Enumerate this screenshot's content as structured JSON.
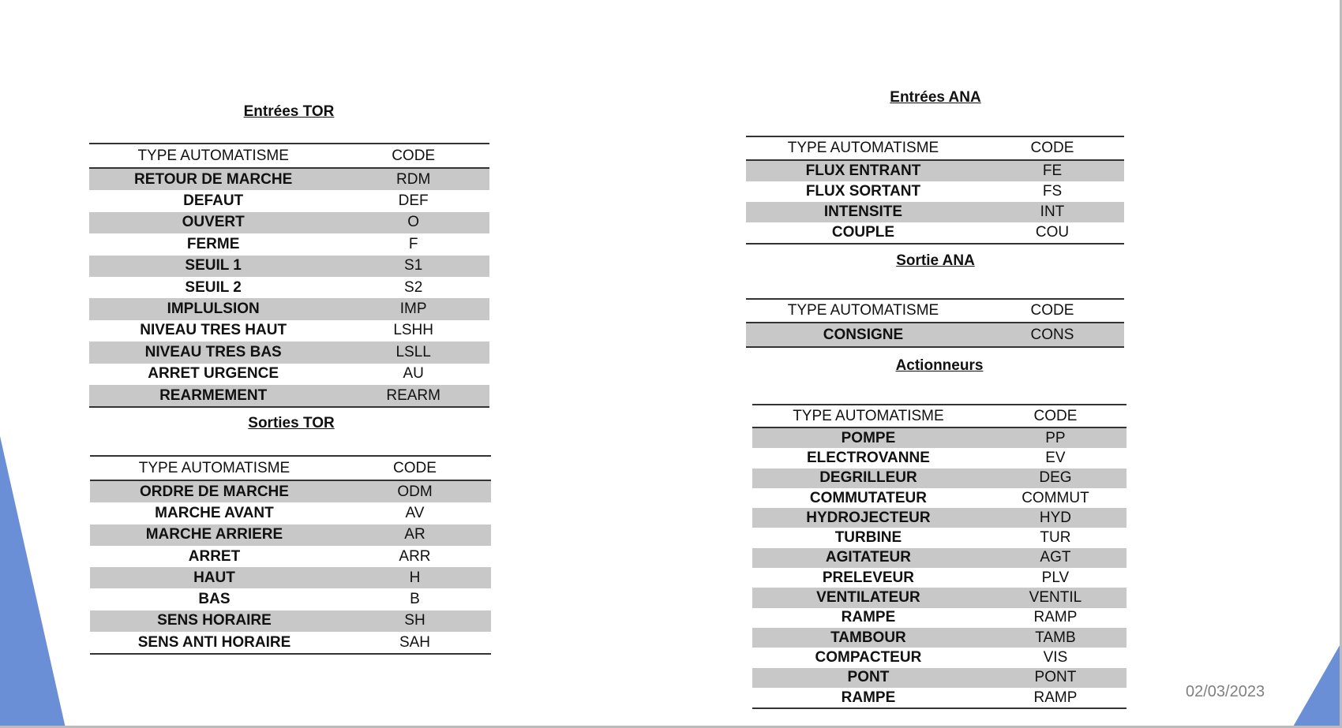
{
  "date": "02/03/2023",
  "colors": {
    "accent": "#6a8fd6",
    "row_shade": "#c8c8c8"
  },
  "tables": [
    {
      "id": "entrees-tor",
      "title": "Entrées TOR",
      "header": [
        "TYPE AUTOMATISME",
        "CODE"
      ],
      "rows": [
        [
          "RETOUR DE MARCHE",
          "RDM"
        ],
        [
          "DEFAUT",
          "DEF"
        ],
        [
          "OUVERT",
          "O"
        ],
        [
          "FERME",
          "F"
        ],
        [
          "SEUIL 1",
          "S1"
        ],
        [
          "SEUIL 2",
          "S2"
        ],
        [
          "IMPLULSION",
          "IMP"
        ],
        [
          "NIVEAU TRES HAUT",
          "LSHH"
        ],
        [
          "NIVEAU TRES BAS",
          "LSLL"
        ],
        [
          "ARRET URGENCE",
          "AU"
        ],
        [
          "REARMEMENT",
          "REARM"
        ]
      ]
    },
    {
      "id": "sorties-tor",
      "title": "Sorties TOR",
      "header": [
        "TYPE AUTOMATISME",
        "CODE"
      ],
      "rows": [
        [
          "ORDRE DE MARCHE",
          "ODM"
        ],
        [
          "MARCHE AVANT",
          "AV"
        ],
        [
          "MARCHE ARRIERE",
          "AR"
        ],
        [
          "ARRET",
          "ARR"
        ],
        [
          "HAUT",
          "H"
        ],
        [
          "BAS",
          "B"
        ],
        [
          "SENS HORAIRE",
          "SH"
        ],
        [
          "SENS ANTI HORAIRE",
          "SAH"
        ]
      ]
    },
    {
      "id": "entrees-ana",
      "title": "Entrées ANA",
      "header": [
        "TYPE AUTOMATISME",
        "CODE"
      ],
      "rows": [
        [
          "FLUX ENTRANT",
          "FE"
        ],
        [
          "FLUX SORTANT",
          "FS"
        ],
        [
          "INTENSITE",
          "INT"
        ],
        [
          "COUPLE",
          "COU"
        ]
      ]
    },
    {
      "id": "sortie-ana",
      "title": "Sortie ANA",
      "header": [
        "TYPE AUTOMATISME",
        "CODE"
      ],
      "rows": [
        [
          "CONSIGNE",
          "CONS"
        ]
      ]
    },
    {
      "id": "actionneurs",
      "title": "Actionneurs",
      "header": [
        "TYPE AUTOMATISME",
        "CODE"
      ],
      "rows": [
        [
          "POMPE",
          "PP"
        ],
        [
          "ELECTROVANNE",
          "EV"
        ],
        [
          "DEGRILLEUR",
          "DEG"
        ],
        [
          "COMMUTATEUR",
          "COMMUT"
        ],
        [
          "HYDROJECTEUR",
          "HYD"
        ],
        [
          "TURBINE",
          "TUR"
        ],
        [
          "AGITATEUR",
          "AGT"
        ],
        [
          "PRELEVEUR",
          "PLV"
        ],
        [
          "VENTILATEUR",
          "VENTIL"
        ],
        [
          "RAMPE",
          "RAMP"
        ],
        [
          "TAMBOUR",
          "TAMB"
        ],
        [
          "COMPACTEUR",
          "VIS"
        ],
        [
          "PONT",
          "PONT"
        ],
        [
          "RAMPE",
          "RAMP"
        ]
      ]
    }
  ]
}
